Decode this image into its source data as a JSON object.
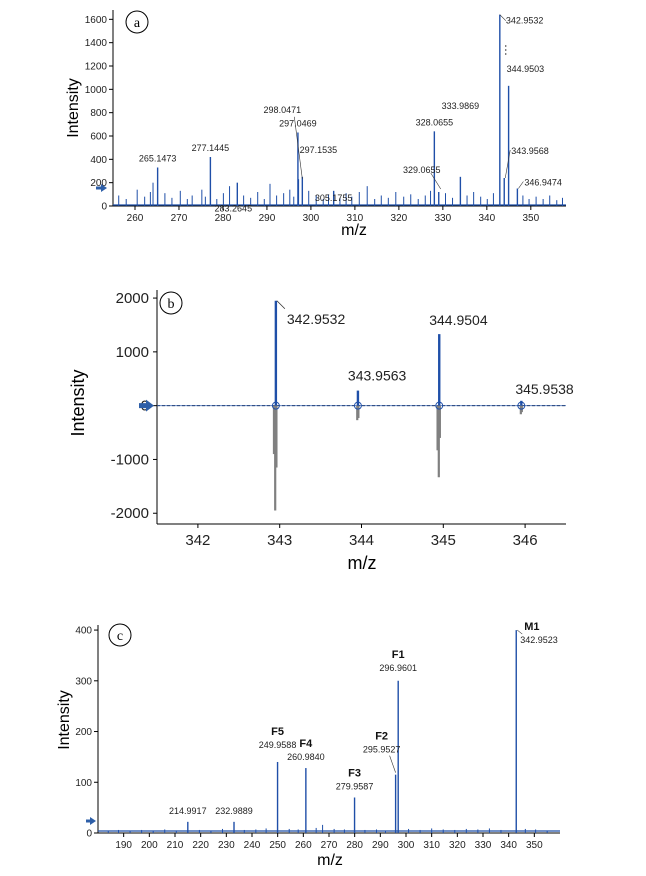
{
  "colors": {
    "spectrum": "#1f4fa8",
    "mirror": "#808080",
    "arrow": "#2e5fa8"
  },
  "chart_data": [
    {
      "type": "bar",
      "panel": "a",
      "xlabel": "m/z",
      "ylabel": "Intensity",
      "xlim": [
        255,
        358
      ],
      "ylim": [
        0,
        1680
      ],
      "xticks": [
        260,
        270,
        280,
        290,
        300,
        310,
        320,
        330,
        340,
        350
      ],
      "yticks": [
        0,
        200,
        400,
        600,
        800,
        1000,
        1200,
        1400,
        1600
      ],
      "peaks": [
        {
          "x": 265.1473,
          "y": 330,
          "label": "265.1473"
        },
        {
          "x": 277.1445,
          "y": 420,
          "label": "277.1445"
        },
        {
          "x": 283.2645,
          "y": 200,
          "label": "283.2645"
        },
        {
          "x": 297.0469,
          "y": 630,
          "label": "297.0469"
        },
        {
          "x": 298.0471,
          "y": 250,
          "label": "298.0471"
        },
        {
          "x": 297.1535,
          "y": 230,
          "label": "297.1535"
        },
        {
          "x": 305.1755,
          "y": 130,
          "label": "305.1755"
        },
        {
          "x": 328.0655,
          "y": 640,
          "label": "328.0655"
        },
        {
          "x": 329.0655,
          "y": 120,
          "label": "329.0655"
        },
        {
          "x": 333.9869,
          "y": 250,
          "label": "333.9869"
        },
        {
          "x": 342.9532,
          "y": 1640,
          "label": "342.9532"
        },
        {
          "x": 344.9503,
          "y": 1030,
          "label": "344.9503"
        },
        {
          "x": 343.9568,
          "y": 240,
          "label": "343.9568"
        },
        {
          "x": 346.9474,
          "y": 150,
          "label": "346.9474"
        }
      ],
      "noise": [
        {
          "x": 256.3,
          "y": 90
        },
        {
          "x": 258.0,
          "y": 60
        },
        {
          "x": 260.5,
          "y": 140
        },
        {
          "x": 262.2,
          "y": 80
        },
        {
          "x": 263.5,
          "y": 120
        },
        {
          "x": 264.1,
          "y": 200
        },
        {
          "x": 266.8,
          "y": 110
        },
        {
          "x": 268.4,
          "y": 70
        },
        {
          "x": 270.3,
          "y": 130
        },
        {
          "x": 271.9,
          "y": 60
        },
        {
          "x": 273.0,
          "y": 90
        },
        {
          "x": 275.2,
          "y": 140
        },
        {
          "x": 276.0,
          "y": 80
        },
        {
          "x": 278.6,
          "y": 60
        },
        {
          "x": 280.1,
          "y": 110
        },
        {
          "x": 281.5,
          "y": 170
        },
        {
          "x": 284.7,
          "y": 90
        },
        {
          "x": 286.3,
          "y": 70
        },
        {
          "x": 287.9,
          "y": 120
        },
        {
          "x": 289.4,
          "y": 60
        },
        {
          "x": 290.7,
          "y": 190
        },
        {
          "x": 292.2,
          "y": 90
        },
        {
          "x": 293.8,
          "y": 110
        },
        {
          "x": 295.2,
          "y": 140
        },
        {
          "x": 296.1,
          "y": 80
        },
        {
          "x": 299.5,
          "y": 130
        },
        {
          "x": 301.2,
          "y": 90
        },
        {
          "x": 302.8,
          "y": 60
        },
        {
          "x": 304.0,
          "y": 100
        },
        {
          "x": 306.6,
          "y": 70
        },
        {
          "x": 308.0,
          "y": 110
        },
        {
          "x": 309.3,
          "y": 80
        },
        {
          "x": 311.0,
          "y": 120
        },
        {
          "x": 312.8,
          "y": 170
        },
        {
          "x": 314.5,
          "y": 60
        },
        {
          "x": 316.0,
          "y": 90
        },
        {
          "x": 317.6,
          "y": 70
        },
        {
          "x": 319.3,
          "y": 120
        },
        {
          "x": 321.1,
          "y": 80
        },
        {
          "x": 322.7,
          "y": 100
        },
        {
          "x": 324.4,
          "y": 60
        },
        {
          "x": 326.0,
          "y": 90
        },
        {
          "x": 327.2,
          "y": 130
        },
        {
          "x": 330.6,
          "y": 110
        },
        {
          "x": 332.2,
          "y": 70
        },
        {
          "x": 335.5,
          "y": 90
        },
        {
          "x": 337.0,
          "y": 120
        },
        {
          "x": 338.6,
          "y": 80
        },
        {
          "x": 340.1,
          "y": 60
        },
        {
          "x": 341.5,
          "y": 110
        },
        {
          "x": 348.2,
          "y": 90
        },
        {
          "x": 349.6,
          "y": 60
        },
        {
          "x": 351.2,
          "y": 80
        },
        {
          "x": 352.8,
          "y": 60
        },
        {
          "x": 354.3,
          "y": 90
        },
        {
          "x": 355.9,
          "y": 50
        },
        {
          "x": 357.2,
          "y": 70
        }
      ]
    },
    {
      "type": "bar",
      "panel": "b",
      "xlabel": "m/z",
      "ylabel": "Intensity",
      "xlim": [
        341.5,
        346.5
      ],
      "ylim": [
        -2200,
        2150
      ],
      "xticks": [
        342,
        343,
        344,
        345,
        346
      ],
      "yticks": [
        -2000,
        -1000,
        0,
        1000,
        2000
      ],
      "series": [
        {
          "role": "measured",
          "peaks": [
            {
              "x": 342.9532,
              "y": 1950,
              "label": "342.9532"
            },
            {
              "x": 343.9563,
              "y": 280,
              "label": "343.9563"
            },
            {
              "x": 344.9504,
              "y": 1330,
              "label": "344.9504"
            },
            {
              "x": 345.9538,
              "y": 90,
              "label": "345.9538"
            }
          ]
        },
        {
          "role": "mirror",
          "peaks": [
            {
              "x": 342.945,
              "y": -1950
            },
            {
              "x": 342.93,
              "y": -900
            },
            {
              "x": 342.96,
              "y": -1150
            },
            {
              "x": 343.948,
              "y": -270
            },
            {
              "x": 343.962,
              "y": -230
            },
            {
              "x": 344.945,
              "y": -1330
            },
            {
              "x": 344.93,
              "y": -830
            },
            {
              "x": 344.958,
              "y": -600
            },
            {
              "x": 345.948,
              "y": -160
            },
            {
              "x": 345.96,
              "y": -120
            }
          ]
        }
      ]
    },
    {
      "type": "bar",
      "panel": "c",
      "xlabel": "m/z",
      "ylabel": "Intensity",
      "xlim": [
        180,
        360
      ],
      "ylim": [
        0,
        410
      ],
      "xticks": [
        190,
        200,
        210,
        220,
        230,
        240,
        250,
        260,
        270,
        280,
        290,
        300,
        310,
        320,
        330,
        340,
        350
      ],
      "yticks": [
        0,
        100,
        200,
        300,
        400
      ],
      "peaks": [
        {
          "x": 214.9917,
          "y": 22,
          "label": "214.9917"
        },
        {
          "x": 232.9889,
          "y": 22,
          "label": "232.9889"
        },
        {
          "x": 249.9588,
          "y": 140,
          "label": "249.9588",
          "fragment": "F5"
        },
        {
          "x": 260.984,
          "y": 128,
          "label": "260.9840",
          "fragment": "F4"
        },
        {
          "x": 279.9587,
          "y": 70,
          "label": "279.9587",
          "fragment": "F3"
        },
        {
          "x": 295.9527,
          "y": 115,
          "label": "295.9527",
          "fragment": "F2"
        },
        {
          "x": 296.9601,
          "y": 300,
          "label": "296.9601",
          "fragment": "F1"
        },
        {
          "x": 342.9523,
          "y": 400,
          "label": "342.9523",
          "fragment": "M1"
        }
      ],
      "noise": [
        {
          "x": 184.0,
          "y": 5
        },
        {
          "x": 188.0,
          "y": 6
        },
        {
          "x": 192.5,
          "y": 4
        },
        {
          "x": 197.0,
          "y": 6
        },
        {
          "x": 201.5,
          "y": 5
        },
        {
          "x": 206.0,
          "y": 7
        },
        {
          "x": 210.5,
          "y": 5
        },
        {
          "x": 219.5,
          "y": 6
        },
        {
          "x": 224.0,
          "y": 5
        },
        {
          "x": 228.5,
          "y": 8
        },
        {
          "x": 237.0,
          "y": 6
        },
        {
          "x": 241.5,
          "y": 7
        },
        {
          "x": 245.5,
          "y": 9
        },
        {
          "x": 254.5,
          "y": 8
        },
        {
          "x": 258.0,
          "y": 7
        },
        {
          "x": 265.0,
          "y": 10
        },
        {
          "x": 267.5,
          "y": 16
        },
        {
          "x": 272.0,
          "y": 8
        },
        {
          "x": 276.0,
          "y": 7
        },
        {
          "x": 284.0,
          "y": 6
        },
        {
          "x": 288.5,
          "y": 7
        },
        {
          "x": 292.0,
          "y": 5
        },
        {
          "x": 301.0,
          "y": 8
        },
        {
          "x": 305.5,
          "y": 6
        },
        {
          "x": 310.0,
          "y": 9
        },
        {
          "x": 314.5,
          "y": 7
        },
        {
          "x": 319.0,
          "y": 6
        },
        {
          "x": 323.5,
          "y": 8
        },
        {
          "x": 328.0,
          "y": 7
        },
        {
          "x": 332.5,
          "y": 9
        },
        {
          "x": 337.0,
          "y": 6
        },
        {
          "x": 346.5,
          "y": 8
        },
        {
          "x": 350.5,
          "y": 7
        },
        {
          "x": 355.0,
          "y": 5
        }
      ]
    }
  ]
}
